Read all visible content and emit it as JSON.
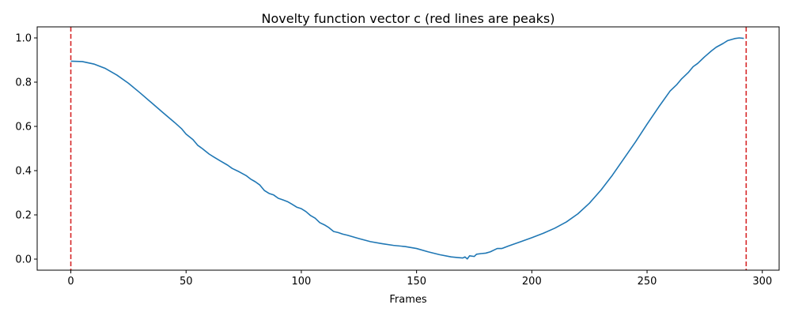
{
  "chart_data": {
    "type": "line",
    "title": "Novelty function vector c (red lines are peaks)",
    "xlabel": "Frames",
    "ylabel": "",
    "xlim": [
      -14.6,
      307.3
    ],
    "ylim": [
      -0.05,
      1.05
    ],
    "xticks": [
      0,
      50,
      100,
      150,
      200,
      250,
      300
    ],
    "yticks": [
      0.0,
      0.2,
      0.4,
      0.6,
      0.8,
      1.0
    ],
    "ytick_labels": [
      "0.0",
      "0.2",
      "0.4",
      "0.6",
      "0.8",
      "1.0"
    ],
    "grid": false,
    "line_color": "#1f77b4",
    "peak_color": "#d62728",
    "peaks": [
      0,
      293
    ],
    "series": [
      {
        "x": [
          0,
          5,
          10,
          15,
          20,
          25,
          30,
          35,
          40,
          45,
          48,
          50,
          53,
          55,
          57,
          60,
          62,
          65,
          68,
          70,
          73,
          76,
          78,
          80,
          82,
          84,
          86,
          88,
          90,
          92,
          94,
          96,
          98,
          100,
          102,
          104,
          106,
          108,
          110,
          112,
          114,
          116,
          118,
          120,
          125,
          130,
          135,
          140,
          145,
          150,
          155,
          160,
          165,
          168,
          170,
          171,
          172,
          173,
          175,
          176,
          178,
          180,
          182,
          184,
          185,
          187,
          190,
          195,
          200,
          205,
          210,
          215,
          220,
          225,
          230,
          235,
          240,
          245,
          250,
          255,
          260,
          263,
          265,
          268,
          270,
          272,
          275,
          278,
          280,
          283,
          285,
          288,
          290,
          292
        ],
        "y": [
          0.895,
          0.893,
          0.882,
          0.862,
          0.832,
          0.795,
          0.752,
          0.707,
          0.662,
          0.618,
          0.59,
          0.565,
          0.54,
          0.515,
          0.5,
          0.475,
          0.462,
          0.443,
          0.425,
          0.41,
          0.395,
          0.378,
          0.362,
          0.35,
          0.335,
          0.31,
          0.297,
          0.29,
          0.275,
          0.268,
          0.26,
          0.248,
          0.235,
          0.228,
          0.215,
          0.197,
          0.185,
          0.165,
          0.155,
          0.142,
          0.125,
          0.12,
          0.113,
          0.108,
          0.093,
          0.079,
          0.07,
          0.062,
          0.057,
          0.048,
          0.033,
          0.02,
          0.01,
          0.007,
          0.005,
          0.01,
          0.001,
          0.015,
          0.012,
          0.022,
          0.025,
          0.027,
          0.033,
          0.043,
          0.048,
          0.048,
          0.06,
          0.078,
          0.097,
          0.117,
          0.14,
          0.168,
          0.205,
          0.253,
          0.312,
          0.38,
          0.455,
          0.53,
          0.61,
          0.687,
          0.76,
          0.79,
          0.815,
          0.845,
          0.87,
          0.885,
          0.915,
          0.942,
          0.958,
          0.975,
          0.988,
          0.997,
          1.0,
          0.998
        ]
      }
    ]
  }
}
